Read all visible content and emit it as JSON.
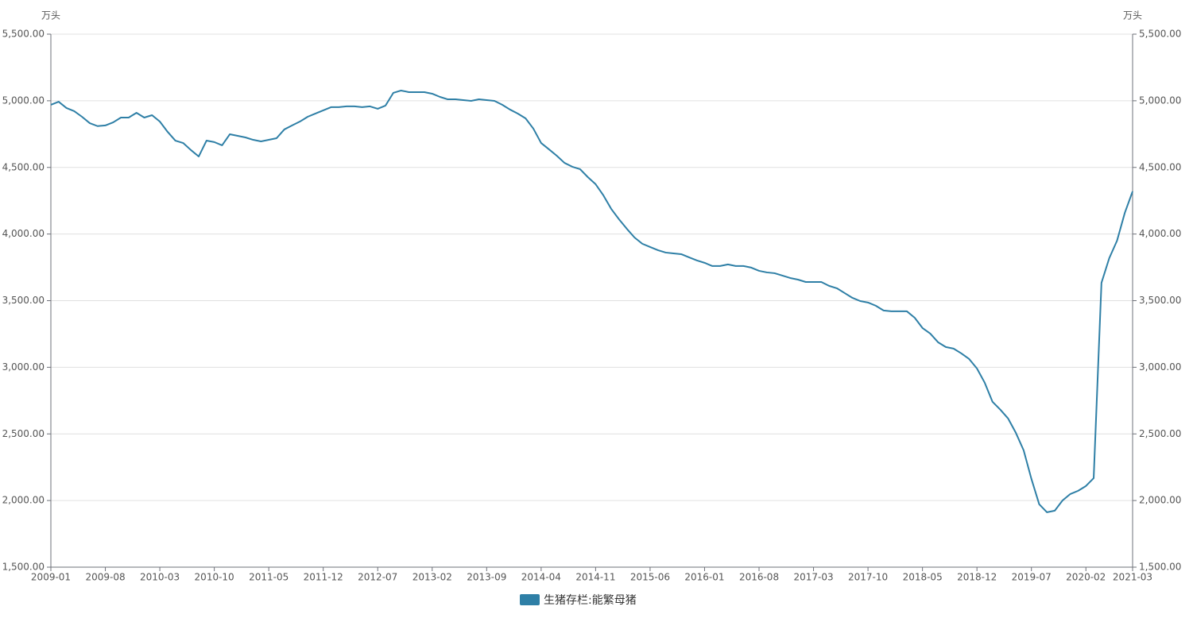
{
  "chart_data": {
    "type": "line",
    "ylabel": "万头",
    "y2label": "万头",
    "categories": [
      "2009-01",
      null,
      null,
      null,
      null,
      null,
      null,
      "2009-08",
      null,
      null,
      null,
      null,
      null,
      null,
      "2010-03",
      null,
      null,
      null,
      null,
      null,
      null,
      "2010-10",
      null,
      null,
      null,
      null,
      null,
      null,
      "2011-05",
      null,
      null,
      null,
      null,
      null,
      null,
      "2011-12",
      null,
      null,
      null,
      null,
      null,
      null,
      "2012-07",
      null,
      null,
      null,
      null,
      null,
      null,
      "2013-02",
      null,
      null,
      null,
      null,
      null,
      null,
      "2013-09",
      null,
      null,
      null,
      null,
      null,
      null,
      "2014-04",
      null,
      null,
      null,
      null,
      null,
      null,
      "2014-11",
      null,
      null,
      null,
      null,
      null,
      null,
      "2015-06",
      null,
      null,
      null,
      null,
      null,
      null,
      "2016-01",
      null,
      null,
      null,
      null,
      null,
      null,
      "2016-08",
      null,
      null,
      null,
      null,
      null,
      null,
      "2017-03",
      null,
      null,
      null,
      null,
      null,
      null,
      "2017-10",
      null,
      null,
      null,
      null,
      null,
      null,
      "2018-05",
      null,
      null,
      null,
      null,
      null,
      null,
      "2018-12",
      null,
      null,
      null,
      null,
      null,
      null,
      "2019-07",
      null,
      null,
      null,
      null,
      null,
      null,
      "2020-02",
      null,
      null,
      null,
      null,
      null,
      "2021-03"
    ],
    "series": [
      {
        "name": "生猪存栏:能繁母猪",
        "color": "#2e7fa6",
        "values": [
          4970,
          4993,
          4946,
          4922,
          4880,
          4832,
          4810,
          4815,
          4838,
          4874,
          4874,
          4910,
          4874,
          4892,
          4844,
          4767,
          4701,
          4683,
          4630,
          4582,
          4701,
          4690,
          4666,
          4749,
          4737,
          4725,
          4707,
          4695,
          4707,
          4719,
          4785,
          4815,
          4844,
          4880,
          4904,
          4928,
          4952,
          4952,
          4958,
          4958,
          4952,
          4958,
          4940,
          4964,
          5059,
          5077,
          5065,
          5065,
          5065,
          5053,
          5029,
          5011,
          5011,
          5005,
          4999,
          5011,
          5005,
          4999,
          4970,
          4934,
          4904,
          4868,
          4791,
          4683,
          4636,
          4588,
          4534,
          4505,
          4487,
          4427,
          4374,
          4290,
          4189,
          4111,
          4040,
          3974,
          3927,
          3903,
          3879,
          3861,
          3855,
          3849,
          3825,
          3802,
          3784,
          3760,
          3760,
          3772,
          3760,
          3760,
          3748,
          3724,
          3712,
          3706,
          3688,
          3670,
          3658,
          3640,
          3640,
          3640,
          3611,
          3593,
          3557,
          3521,
          3497,
          3486,
          3462,
          3426,
          3420,
          3420,
          3420,
          3372,
          3295,
          3253,
          3188,
          3152,
          3140,
          3104,
          3062,
          2991,
          2884,
          2741,
          2682,
          2616,
          2508,
          2377,
          2162,
          1972,
          1912,
          1924,
          2001,
          2049,
          2073,
          2109,
          2168,
          3634,
          3819,
          3950,
          4159,
          4320
        ]
      }
    ],
    "ylim": [
      1500,
      5500
    ],
    "yticks": [
      {
        "value": 1500,
        "label": "1,500.00"
      },
      {
        "value": 2000,
        "label": "2,000.00"
      },
      {
        "value": 2500,
        "label": "2,500.00"
      },
      {
        "value": 3000,
        "label": "3,000.00"
      },
      {
        "value": 3500,
        "label": "3,500.00"
      },
      {
        "value": 4000,
        "label": "4,000.00"
      },
      {
        "value": 4500,
        "label": "4,500.00"
      },
      {
        "value": 5000,
        "label": "5,000.00"
      },
      {
        "value": 5500,
        "label": "5,500.00"
      }
    ],
    "y2lim": [
      1500,
      5500
    ],
    "y2ticks": [
      {
        "value": 1500,
        "label": "1,500.00"
      },
      {
        "value": 2000,
        "label": "2,000.00"
      },
      {
        "value": 2500,
        "label": "2,500.00"
      },
      {
        "value": 3000,
        "label": "3,000.00"
      },
      {
        "value": 3500,
        "label": "3,500.00"
      },
      {
        "value": 4000,
        "label": "4,000.00"
      },
      {
        "value": 4500,
        "label": "4,500.00"
      },
      {
        "value": 5000,
        "label": "5,000.00"
      },
      {
        "value": 5500,
        "label": "5,500.00"
      }
    ],
    "grid": true
  }
}
